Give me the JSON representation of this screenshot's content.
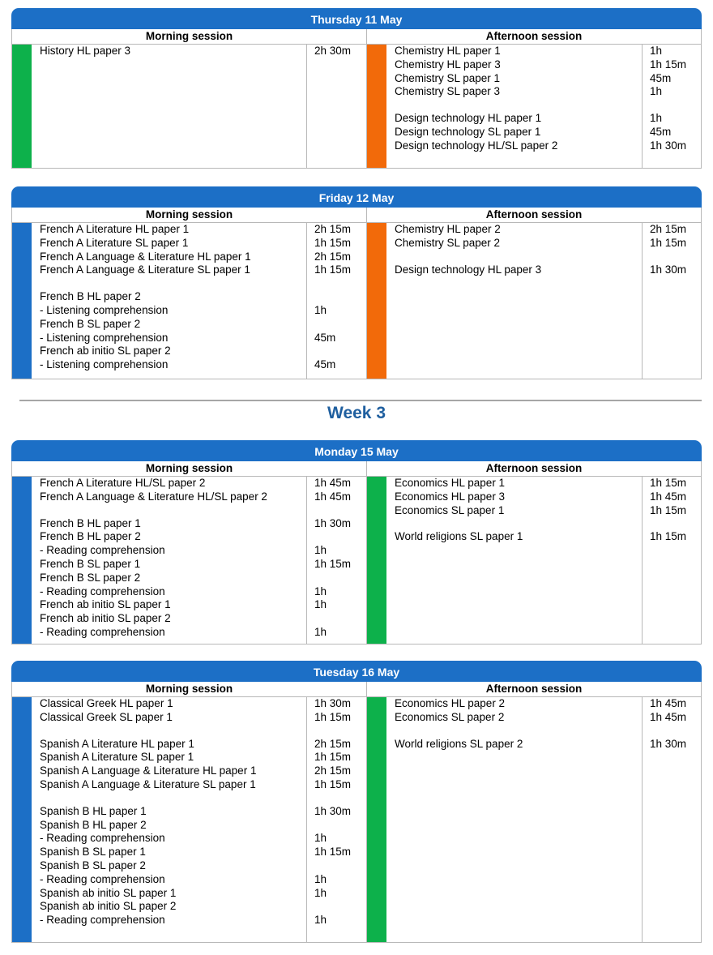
{
  "colors": {
    "header_blue": "#1c6fc6",
    "blue": "#1c6fc6",
    "green": "#0db14b",
    "orange": "#f26a0a"
  },
  "week_title": "Week 3",
  "days": [
    {
      "title": "Thursday 11 May",
      "morning_label": "Morning session",
      "afternoon_label": "Afternoon session",
      "morning_color": "green",
      "afternoon_color": "orange",
      "morning": [
        {
          "s": "History HL paper 3",
          "d": "2h 30m"
        }
      ],
      "afternoon": [
        {
          "s": "Chemistry HL paper 1",
          "d": "1h"
        },
        {
          "s": "Chemistry HL paper 3",
          "d": "1h 15m"
        },
        {
          "s": "Chemistry SL paper 1",
          "d": "45m"
        },
        {
          "s": "Chemistry SL paper 3",
          "d": "1h"
        },
        {
          "gap": true
        },
        {
          "s": "Design technology HL paper 1",
          "d": "1h"
        },
        {
          "s": "Design technology SL paper 1",
          "d": "45m"
        },
        {
          "s": "Design technology HL/SL paper 2",
          "d": "1h 30m"
        }
      ]
    },
    {
      "title": "Friday 12 May",
      "morning_label": "Morning session",
      "afternoon_label": "Afternoon session",
      "morning_color": "blue",
      "afternoon_color": "orange",
      "morning": [
        {
          "s": "French A Literature HL paper 1",
          "d": "2h 15m"
        },
        {
          "s": "French A Literature SL paper 1",
          "d": "1h 15m"
        },
        {
          "s": "French A Language & Literature HL paper 1",
          "d": "2h 15m"
        },
        {
          "s": "French A Language & Literature SL paper 1",
          "d": "1h 15m"
        },
        {
          "gap": true
        },
        {
          "s": "French B HL paper 2",
          "d": ""
        },
        {
          "s": "- Listening comprehension",
          "d": "1h"
        },
        {
          "s": "French B SL paper 2",
          "d": ""
        },
        {
          "s": "- Listening comprehension",
          "d": "45m"
        },
        {
          "s": "French ab initio SL paper 2",
          "d": ""
        },
        {
          "s": "- Listening comprehension",
          "d": "45m"
        }
      ],
      "afternoon": [
        {
          "s": "Chemistry HL paper 2",
          "d": "2h 15m"
        },
        {
          "s": "Chemistry SL paper 2",
          "d": "1h 15m"
        },
        {
          "gap": true
        },
        {
          "s": "Design technology HL paper 3",
          "d": "1h 30m"
        }
      ]
    },
    {
      "title": "Monday 15 May",
      "morning_label": "Morning session",
      "afternoon_label": "Afternoon session",
      "morning_color": "blue",
      "afternoon_color": "green",
      "morning": [
        {
          "s": "French A Literature HL/SL paper 2",
          "d": "1h 45m"
        },
        {
          "s": "French A Language & Literature HL/SL paper 2",
          "d": "1h 45m"
        },
        {
          "gap": true
        },
        {
          "s": "French B HL paper 1",
          "d": "1h 30m"
        },
        {
          "s": "French B HL paper 2",
          "d": ""
        },
        {
          "s": "- Reading comprehension",
          "d": "1h"
        },
        {
          "s": "French B SL paper 1",
          "d": "1h 15m"
        },
        {
          "s": "French B SL paper 2",
          "d": ""
        },
        {
          "s": "- Reading comprehension",
          "d": "1h"
        },
        {
          "s": "French ab initio SL paper 1",
          "d": "1h"
        },
        {
          "s": "French ab initio SL paper 2",
          "d": ""
        },
        {
          "s": "- Reading comprehension",
          "d": "1h"
        }
      ],
      "afternoon": [
        {
          "s": "Economics HL paper 1",
          "d": "1h 15m"
        },
        {
          "s": "Economics HL paper 3",
          "d": "1h 45m"
        },
        {
          "s": "Economics SL paper 1",
          "d": "1h 15m"
        },
        {
          "gap": true
        },
        {
          "s": "World religions SL paper 1",
          "d": "1h 15m"
        }
      ]
    },
    {
      "title": "Tuesday 16 May",
      "morning_label": "Morning session",
      "afternoon_label": "Afternoon session",
      "morning_color": "blue",
      "afternoon_color": "green",
      "morning": [
        {
          "s": "Classical Greek HL paper 1",
          "d": "1h 30m"
        },
        {
          "s": "Classical Greek SL paper 1",
          "d": "1h 15m"
        },
        {
          "gap": true
        },
        {
          "s": "Spanish A Literature HL paper 1",
          "d": "2h 15m"
        },
        {
          "s": "Spanish A Literature SL paper 1",
          "d": "1h 15m"
        },
        {
          "s": "Spanish A Language & Literature HL paper 1",
          "d": "2h 15m"
        },
        {
          "s": "Spanish A Language & Literature SL paper 1",
          "d": "1h 15m"
        },
        {
          "gap": true
        },
        {
          "s": "Spanish B HL paper 1",
          "d": "1h 30m"
        },
        {
          "s": "Spanish B HL paper 2",
          "d": ""
        },
        {
          "s": "- Reading comprehension",
          "d": "1h"
        },
        {
          "s": "Spanish B SL paper 1",
          "d": "1h 15m"
        },
        {
          "s": "Spanish B SL paper 2",
          "d": ""
        },
        {
          "s": "- Reading comprehension",
          "d": "1h"
        },
        {
          "s": "Spanish ab initio SL paper 1",
          "d": "1h"
        },
        {
          "s": "Spanish ab initio SL paper 2",
          "d": ""
        },
        {
          "s": "- Reading comprehension",
          "d": "1h"
        }
      ],
      "afternoon": [
        {
          "s": "Economics HL paper 2",
          "d": "1h 45m"
        },
        {
          "s": "Economics SL paper 2",
          "d": "1h 45m"
        },
        {
          "gap": true
        },
        {
          "s": "World religions SL paper 2",
          "d": "1h 30m"
        }
      ]
    }
  ]
}
